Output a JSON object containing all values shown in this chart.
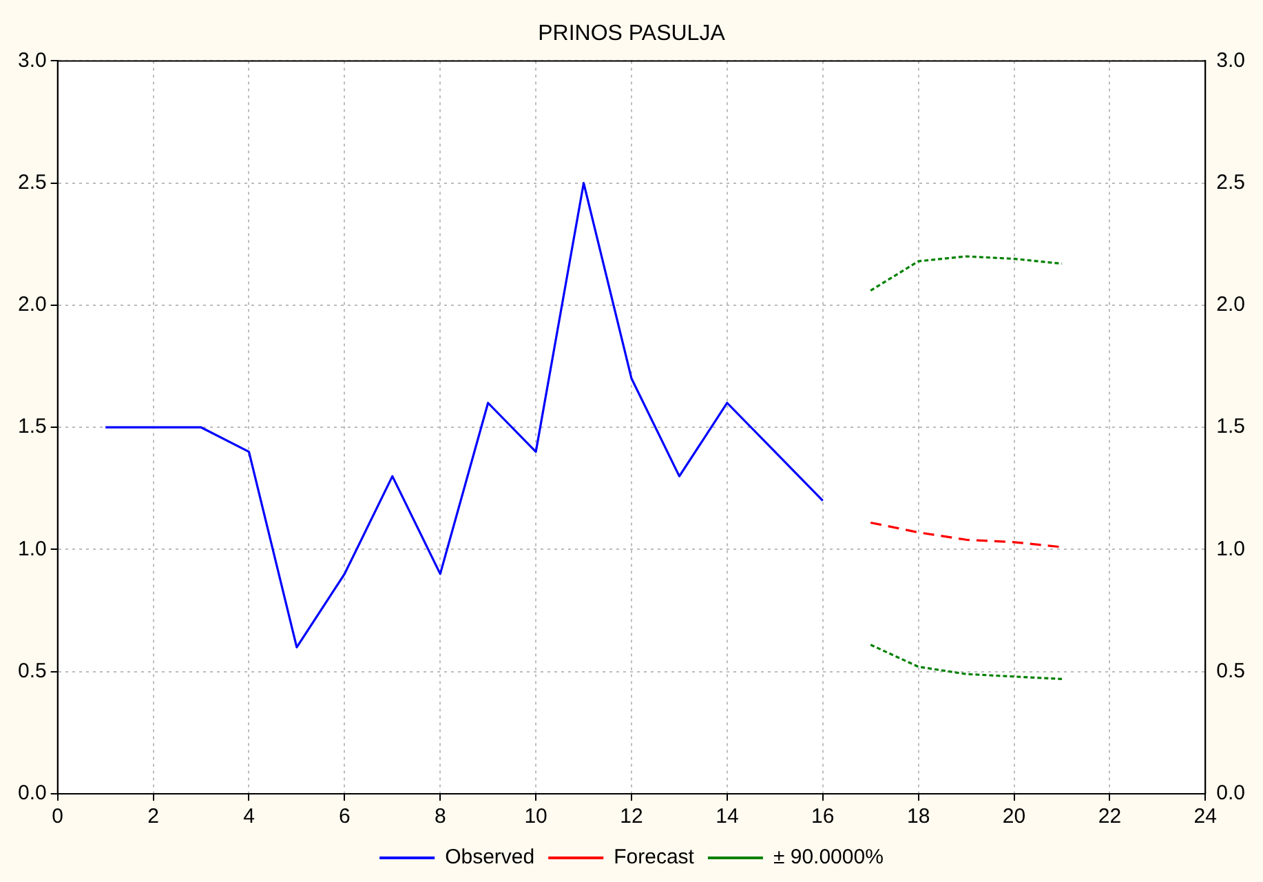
{
  "chart_data": {
    "type": "line",
    "title": "PRINOS PASULJA",
    "xlim": [
      0,
      24
    ],
    "xticks": [
      0,
      2,
      4,
      6,
      8,
      10,
      12,
      14,
      16,
      18,
      20,
      22,
      24
    ],
    "ylim": [
      0,
      3
    ],
    "yticks": [
      {
        "value": 0,
        "label": "0.0"
      },
      {
        "value": 0.5,
        "label": "0.5"
      },
      {
        "value": 1,
        "label": "1.0"
      },
      {
        "value": 1.5,
        "label": "1.5"
      },
      {
        "value": 2,
        "label": "2.0"
      },
      {
        "value": 2.5,
        "label": "2.5"
      },
      {
        "value": 3,
        "label": "3.0"
      }
    ],
    "y2lim": [
      0,
      3
    ],
    "y2ticks": [
      {
        "value": 0,
        "label": "0.0"
      },
      {
        "value": 0.5,
        "label": "0.5"
      },
      {
        "value": 1,
        "label": "1.0"
      },
      {
        "value": 1.5,
        "label": "1.5"
      },
      {
        "value": 2,
        "label": "2.0"
      },
      {
        "value": 2.5,
        "label": "2.5"
      },
      {
        "value": 3,
        "label": "3.0"
      }
    ],
    "grid": true,
    "legend": "bottom",
    "marker": "none",
    "series": [
      {
        "name": "Observed",
        "color": "#0000ff",
        "line_style": "solid",
        "x": [
          1,
          2,
          3,
          4,
          5,
          6,
          7,
          8,
          9,
          10,
          11,
          12,
          13,
          14,
          15,
          16
        ],
        "values": [
          1.5,
          1.5,
          1.5,
          1.4,
          0.6,
          0.9,
          1.3,
          0.9,
          1.6,
          1.4,
          2.5,
          1.7,
          1.3,
          1.6,
          1.4,
          1.2
        ]
      },
      {
        "name": "Forecast",
        "color": "#ff0000",
        "line_style": "dashed",
        "x": [
          17,
          18,
          19,
          20,
          21
        ],
        "values": [
          1.11,
          1.07,
          1.04,
          1.03,
          1.01
        ]
      },
      {
        "name": "± 90.0000%",
        "color": "#008000",
        "line_style": "dotted",
        "x": [
          17,
          18,
          19,
          20,
          21
        ],
        "values": [
          2.06,
          2.18,
          2.2,
          2.19,
          2.17
        ]
      },
      {
        "color": "#008000",
        "line_style": "dotted",
        "x": [
          17,
          18,
          19,
          20,
          21
        ],
        "values": [
          0.61,
          0.52,
          0.49,
          0.48,
          0.47
        ]
      }
    ]
  }
}
